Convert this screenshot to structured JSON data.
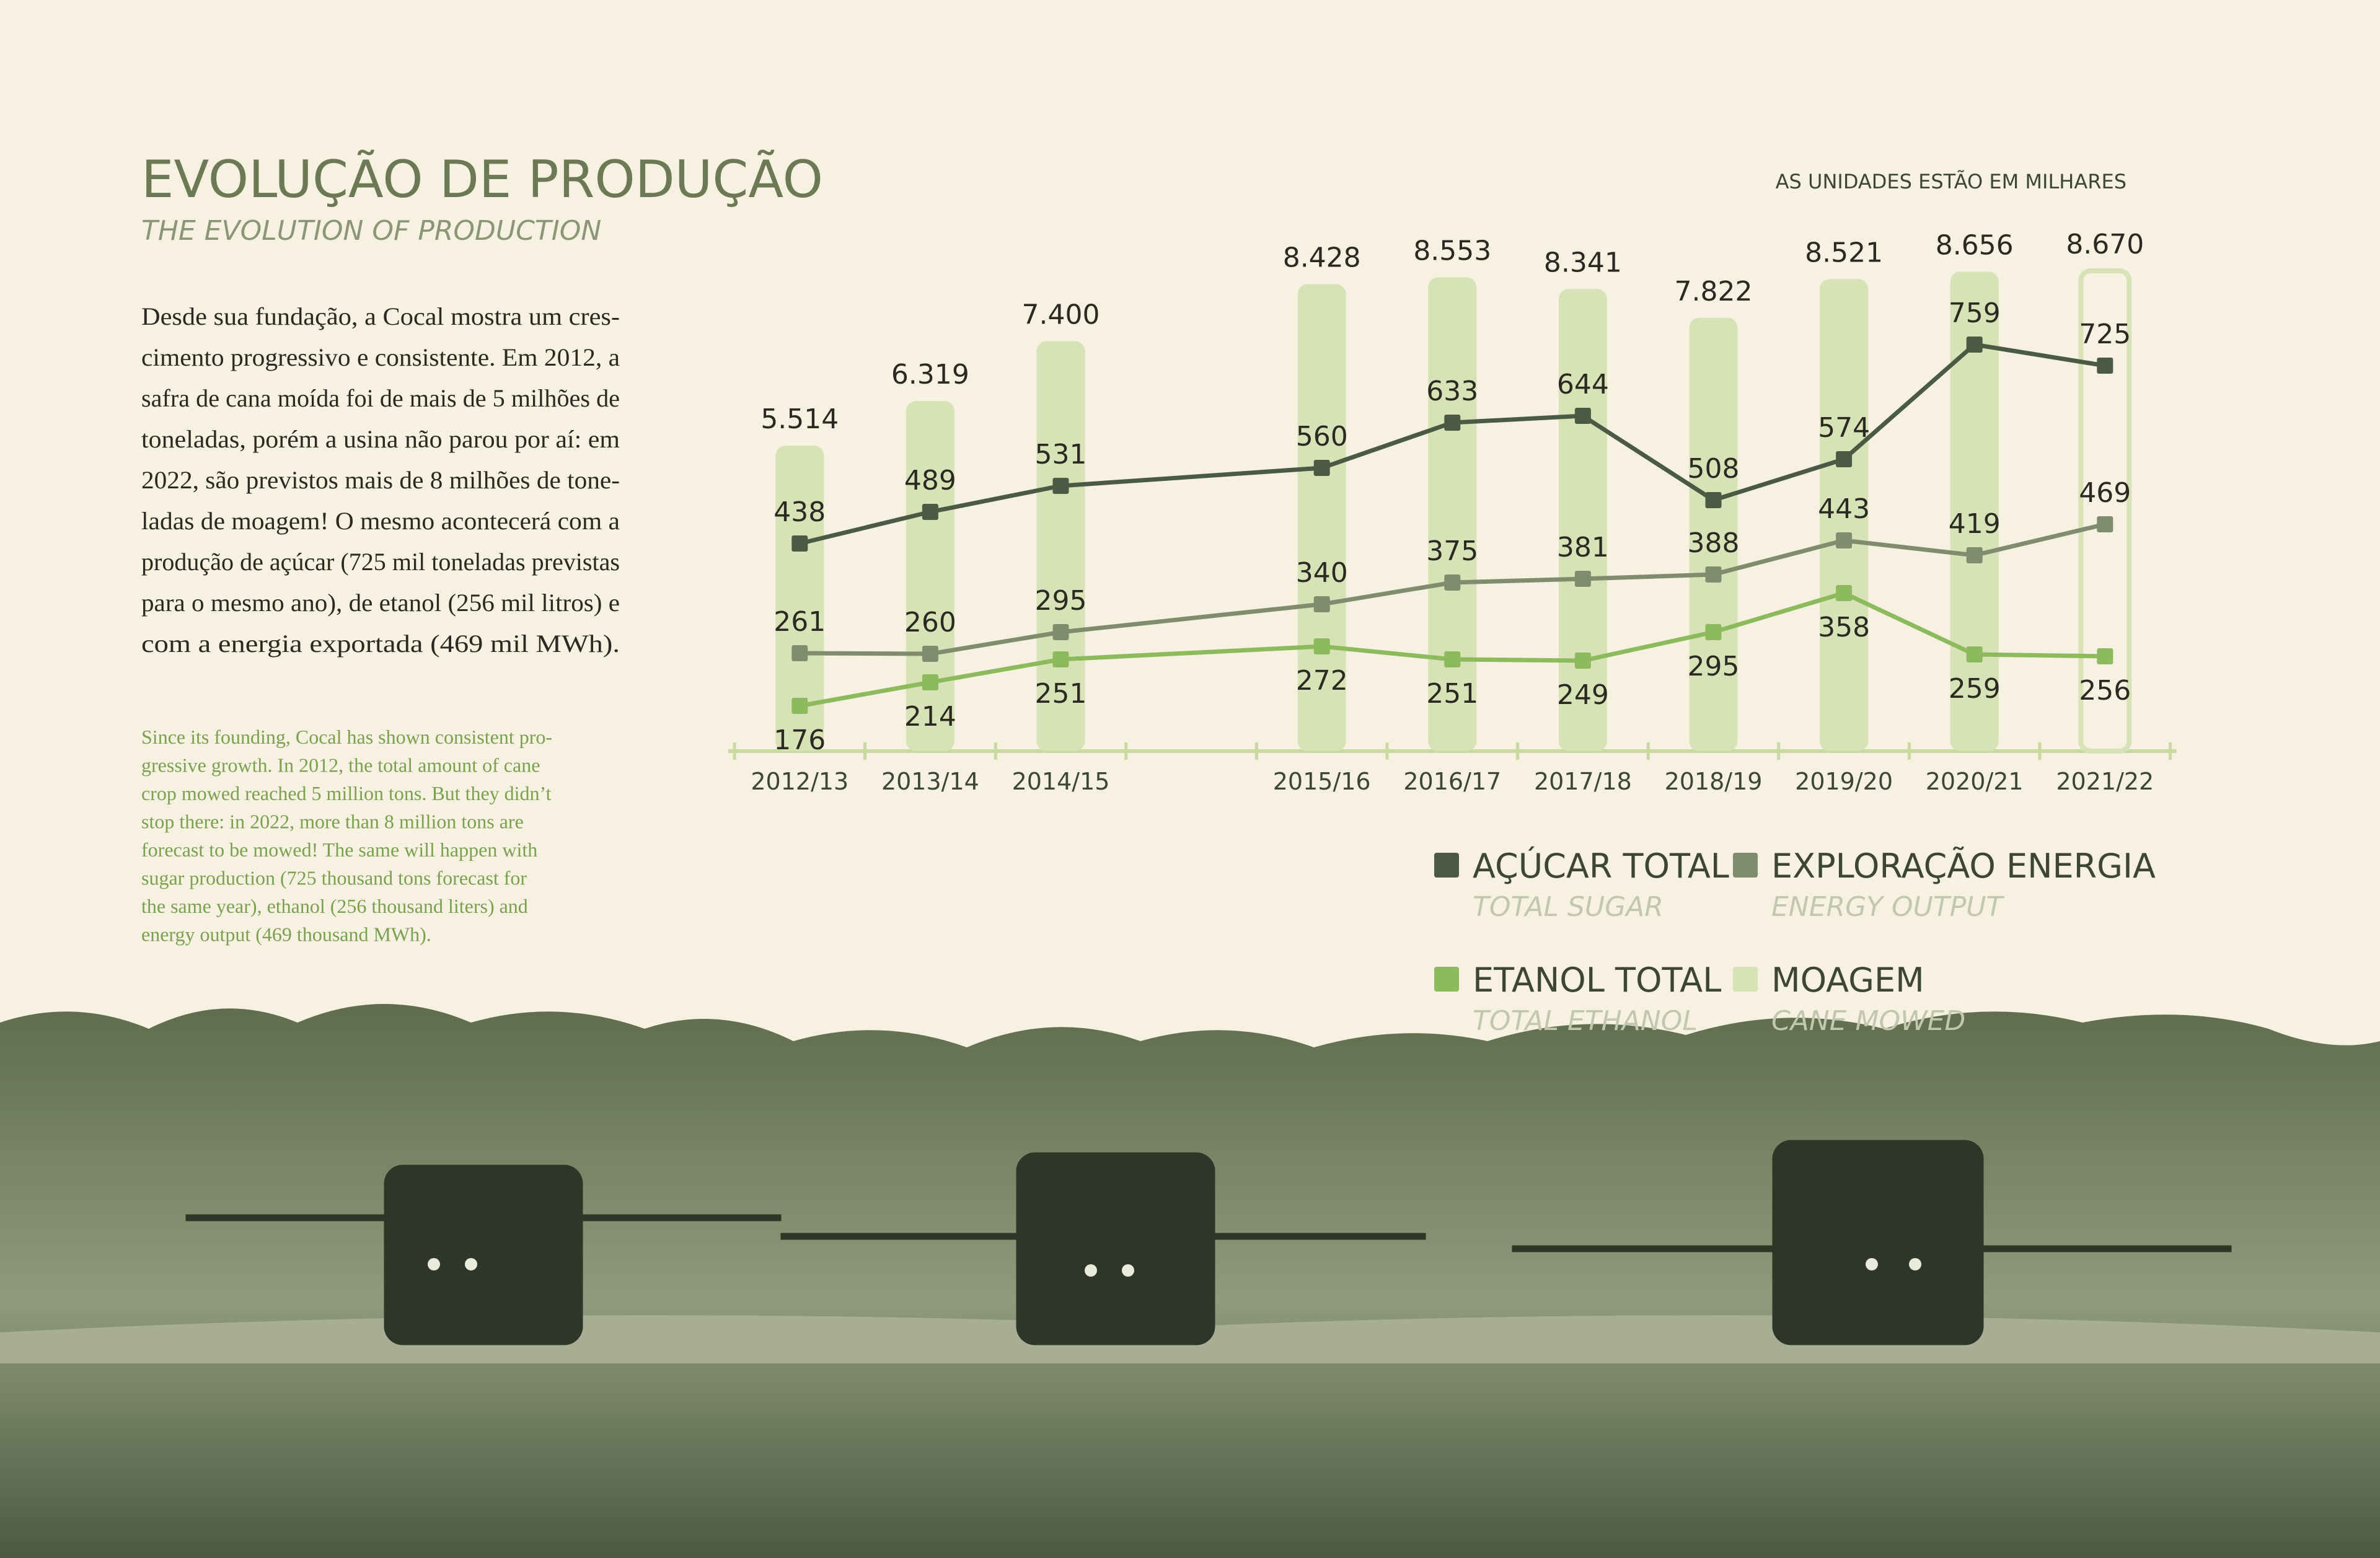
{
  "header": {
    "title": "EVOLUÇÃO DE PRODUÇÃO",
    "subtitle": "THE EVOLUTION OF PRODUCTION",
    "note": "AS UNIDADES ESTÃO EM MILHARES"
  },
  "text_pt": [
    "Desde sua fundação, a Cocal mostra um cres-",
    "cimento progressivo e consistente. Em 2012, a",
    "safra de cana moída foi de mais de 5 milhões de",
    "toneladas, porém a usina não parou por aí: em",
    "2022, são previstos mais de 8 milhões de tone-",
    "ladas de moagem! O mesmo acontecerá com a",
    "produção de açúcar (725 mil toneladas previstas",
    "para o mesmo ano), de etanol (256 mil litros) e",
    "com a energia exportada (469 mil MWh)."
  ],
  "text_en": [
    "Since its founding, Cocal has shown consistent pro-",
    "gressive growth. In 2012, the total amount of cane",
    "crop mowed reached 5 million tons. But they didn’t",
    "stop there: in 2022, more than 8 million tons are",
    "forecast to be mowed! The same will happen with",
    "sugar production (725 thousand tons forecast for",
    "the same year), ethanol (256 thousand liters) and",
    "energy output (469 thousand MWh)."
  ],
  "chart_data": {
    "type": "bar_line",
    "categories": [
      "2012/13",
      "2013/14",
      "2014/15",
      "2015/16",
      "2016/17",
      "2017/18",
      "2018/19",
      "2019/20",
      "2020/21",
      "2021/22"
    ],
    "series": [
      {
        "name": "AÇÚCAR TOTAL",
        "subtitle": "TOTAL SUGAR",
        "type": "line",
        "color": "#4b5a43",
        "values": [
          438,
          489,
          531,
          560,
          633,
          644,
          508,
          574,
          759,
          725
        ]
      },
      {
        "name": "EXPLORAÇÃO ENERGIA",
        "subtitle": "ENERGY OUTPUT",
        "type": "line",
        "color": "#7f8d6e",
        "values": [
          261,
          260,
          295,
          340,
          375,
          381,
          388,
          443,
          419,
          469
        ]
      },
      {
        "name": "ETANOL TOTAL",
        "subtitle": "TOTAL ETHANOL",
        "type": "line",
        "color": "#8cba5c",
        "values": [
          176,
          214,
          251,
          272,
          251,
          249,
          295,
          358,
          259,
          256
        ]
      },
      {
        "name": "MOAGEM",
        "subtitle": "CANE MOWED",
        "type": "bar",
        "color": "#d7e3b6",
        "values": [
          5514,
          6319,
          7400,
          8428,
          8553,
          8341,
          7822,
          8521,
          8656,
          8670
        ],
        "value_labels": [
          "5.514",
          "6.319",
          "7.400",
          "8.428",
          "8.553",
          "8.341",
          "7.822",
          "8.521",
          "8.656",
          "8.670"
        ]
      }
    ]
  }
}
